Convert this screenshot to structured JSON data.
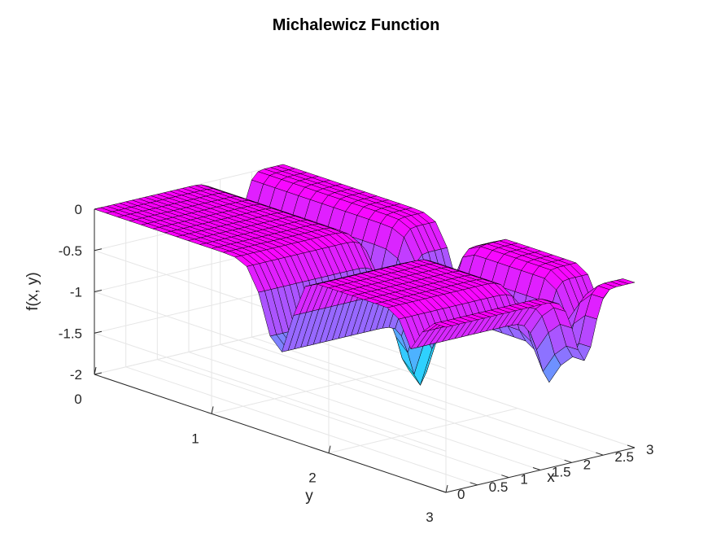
{
  "chart_data": {
    "type": "surface",
    "title": "Michalewicz Function",
    "xlabel": "x",
    "ylabel": "y",
    "zlabel": "f(x, y)",
    "xlim": [
      0,
      3
    ],
    "ylim": [
      0,
      3
    ],
    "zlim": [
      -2,
      0
    ],
    "x_ticks": [
      0,
      0.5,
      1,
      1.5,
      2,
      2.5,
      3
    ],
    "x_tick_labels": [
      "0",
      "0.5",
      "1",
      "1.5",
      "2",
      "2.5",
      "3"
    ],
    "y_ticks": [
      0,
      1,
      2,
      3
    ],
    "y_tick_labels": [
      "0",
      "1",
      "2",
      "3"
    ],
    "z_ticks": [
      -2,
      -1.5,
      -1,
      -0.5,
      0
    ],
    "z_tick_labels": [
      "-2",
      "-1.5",
      "-1",
      "-0.5",
      "0"
    ],
    "function": "f(x,y) = -(sin(x)*sin(x^2/pi)^20 + sin(y)*sin(2*y^2/pi)^20)",
    "grid_points": 31,
    "grid": true,
    "colormap": "cool",
    "colormap_low": "#00ffff",
    "colormap_high": "#ff00ff"
  }
}
